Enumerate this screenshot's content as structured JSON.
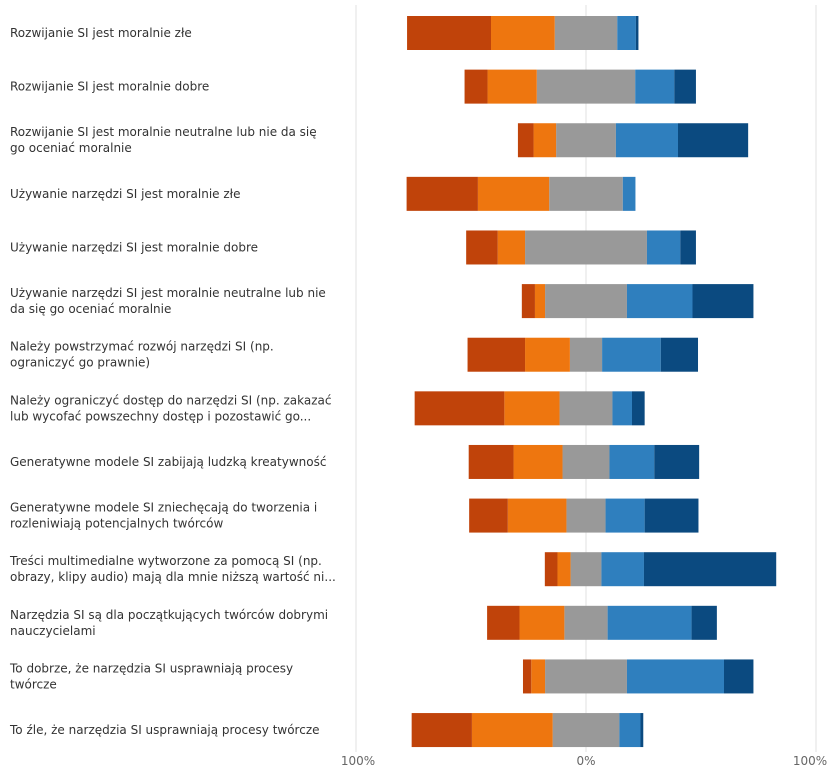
{
  "chart_data": {
    "type": "bar",
    "orientation": "horizontal",
    "stacked": "diverging",
    "categories": [
      "Rozwijanie SI jest moralnie złe",
      "Rozwijanie SI jest moralnie dobre",
      "Rozwijanie SI jest moralnie neutralne lub nie da się go oceniać moralnie",
      "Używanie narzędzi SI jest moralnie złe",
      "Używanie narzędzi SI jest moralnie dobre",
      "Używanie narzędzi SI jest moralnie neutralne lub nie da się go oceniać moralnie",
      "Należy powstrzymać rozwój narzędzi SI (np. ograniczyć go prawnie)",
      "Należy ograniczyć dostęp do narzędzi SI (np. zakazać lub wycofać powszechny dostęp i pozostawić go...",
      "Generatywne modele SI zabijają ludzką kreatywność",
      "Generatywne modele SI zniechęcają do tworzenia i rozleniwiają potencjalnych twórców",
      "Treści multimedialne wytworzone za pomocą SI (np. obrazy, klipy audio) mają dla mnie niższą wartość ni...",
      "Narzędzia SI są dla początkujących twórców dobrymi nauczycielami",
      "To dobrze, że narzędzia SI usprawniają procesy twórcze",
      "To źle, że narzędzia SI usprawniają procesy twórcze"
    ],
    "category_lines": [
      [
        "Rozwijanie SI jest moralnie złe"
      ],
      [
        "Rozwijanie SI jest moralnie dobre"
      ],
      [
        "Rozwijanie SI jest moralnie neutralne lub nie da się",
        "go oceniać moralnie"
      ],
      [
        "Używanie narzędzi SI jest moralnie złe"
      ],
      [
        "Używanie narzędzi SI jest moralnie dobre"
      ],
      [
        "Używanie narzędzi SI jest moralnie neutralne lub nie",
        "da się go oceniać moralnie"
      ],
      [
        "Należy powstrzymać rozwój narzędzi SI (np.",
        "ograniczyć go prawnie)"
      ],
      [
        "Należy ograniczyć dostęp do narzędzi SI (np. zakazać",
        "lub wycofać powszechny dostęp i pozostawić go..."
      ],
      [
        "Generatywne modele SI zabijają ludzką kreatywność"
      ],
      [
        "Generatywne modele SI zniechęcają do tworzenia i",
        "rozleniwiają potencjalnych twórców"
      ],
      [
        "Treści multimedialne wytworzone za pomocą SI (np.",
        "obrazy, klipy audio) mają dla mnie niższą wartość ni..."
      ],
      [
        "Narzędzia SI są dla początkujących twórców dobrymi",
        "nauczycielami"
      ],
      [
        "To dobrze, że narzędzia SI usprawniają procesy",
        "twórcze"
      ],
      [
        "To źle, że narzędzia SI usprawniają procesy twórcze"
      ]
    ],
    "series": [
      {
        "color": "#C0430A",
        "values": [
          36.5,
          10.0,
          6.8,
          31.0,
          13.7,
          5.7,
          25.0,
          39.0,
          19.5,
          16.8,
          5.5,
          14.1,
          3.6,
          26.2
        ]
      },
      {
        "color": "#EE760F",
        "values": [
          27.7,
          21.4,
          9.8,
          31.0,
          11.9,
          4.4,
          19.5,
          24.0,
          21.3,
          25.5,
          5.7,
          19.5,
          6.0,
          35.1
        ]
      },
      {
        "color": "#999999",
        "values": [
          13.6,
          21.4,
          13.0,
          16.0,
          26.5,
          17.8,
          7.0,
          11.5,
          10.2,
          8.5,
          6.7,
          9.4,
          17.8,
          14.5
        ]
      },
      {
        "color": "#999999",
        "values": [
          13.6,
          21.4,
          13.0,
          16.0,
          26.5,
          17.8,
          7.0,
          11.5,
          10.2,
          8.5,
          6.7,
          9.4,
          17.8,
          14.5
        ]
      },
      {
        "color": "#2F7FBE",
        "values": [
          8.1,
          17.0,
          27.0,
          5.5,
          14.5,
          28.5,
          25.5,
          8.5,
          19.5,
          17.0,
          18.5,
          36.5,
          42.2,
          9.2
        ]
      },
      {
        "color": "#0B4A80",
        "values": [
          1.1,
          9.4,
          30.5,
          0,
          6.8,
          26.5,
          16.2,
          5.5,
          19.5,
          23.4,
          57.5,
          11.0,
          12.8,
          1.2
        ]
      }
    ],
    "xlim": [
      -100,
      100
    ],
    "x_tick_labels": [
      "100%",
      "0%",
      "100%"
    ],
    "grid": false,
    "legend": "none"
  }
}
